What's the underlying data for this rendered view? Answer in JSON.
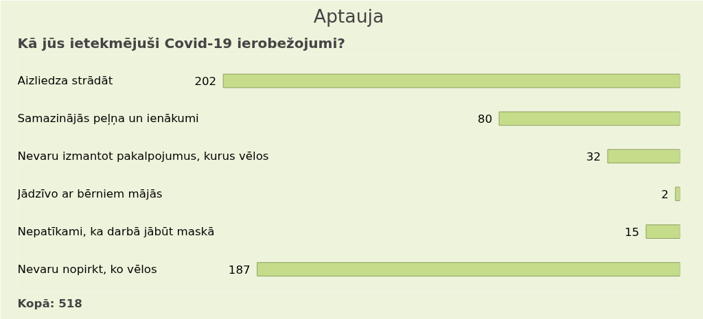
{
  "chart_data": {
    "type": "bar",
    "orientation": "horizontal",
    "title": "Aptauja",
    "subtitle": "Kā jūs ietekmējuši Covid-19 ierobežojumi?",
    "categories": [
      "Aizliedza strādāt",
      "Samazinājās peļņa un ienākumi",
      "Nevaru izmantot pakalpojumus, kurus vēlos",
      "Jādzīvo ar bērniem mājās",
      "Nepatīkami, ka darbā jābūt maskā",
      "Nevaru nopirkt, ko vēlos"
    ],
    "values": [
      202,
      80,
      32,
      2,
      15,
      187
    ],
    "color": "#c5dc8a",
    "xlim": [
      293,
      0
    ],
    "data_labels": true,
    "grid": false,
    "annotations": [
      "Kopā: 518"
    ]
  }
}
